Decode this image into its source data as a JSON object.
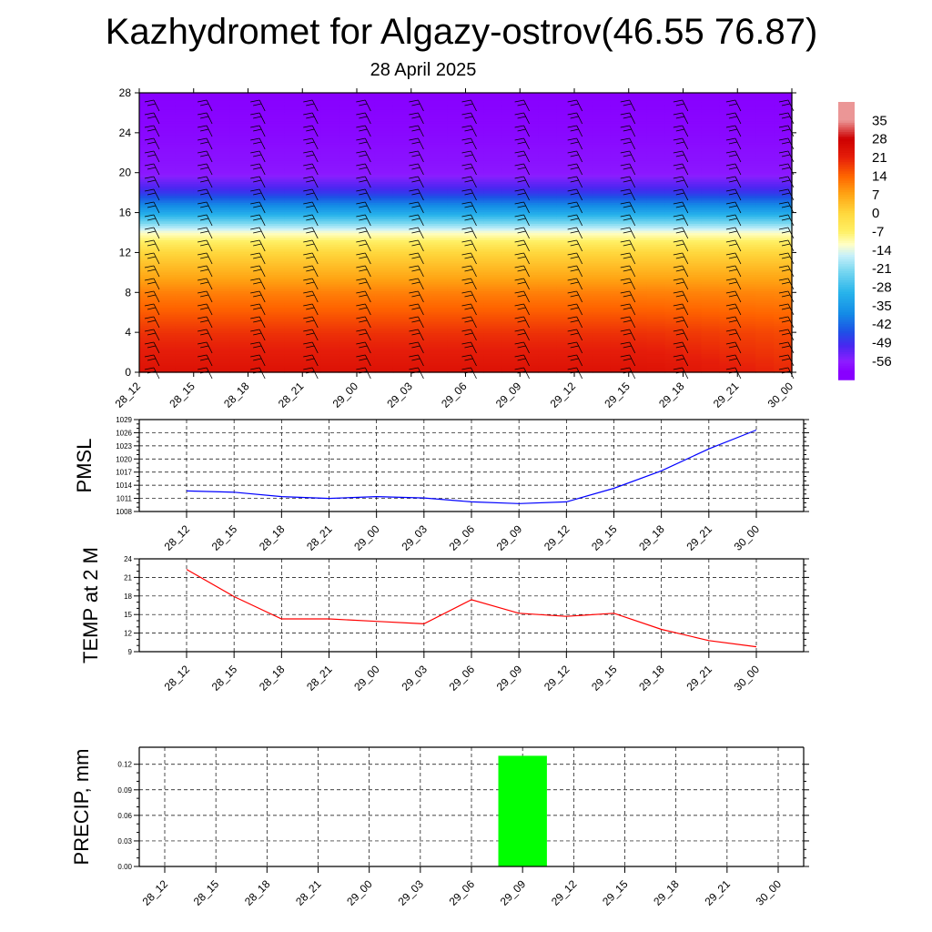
{
  "header": {
    "title": "Kazhydromet for Algazy-ostrov(46.55 76.87)",
    "subtitle": "28 April 2025"
  },
  "colors": {
    "pmsl_line": "#0000ff",
    "temp_line": "#ff0000",
    "precip_bar": "#00ff00",
    "grid": "#000000"
  },
  "colorbar": {
    "labels": [
      "35",
      "28",
      "21",
      "14",
      "7",
      "0",
      "-7",
      "-14",
      "-21",
      "-28",
      "-35",
      "-42",
      "-49",
      "-56"
    ]
  },
  "chart_data": [
    {
      "type": "heatmap",
      "title": "",
      "xlabel": "",
      "ylabel": "",
      "x": [
        "28_12",
        "28_15",
        "28_18",
        "28_21",
        "29_00",
        "29_03",
        "29_06",
        "29_09",
        "29_12",
        "29_15",
        "29_18",
        "29_21",
        "30_00"
      ],
      "yticks": [
        0,
        4,
        8,
        12,
        16,
        20,
        24,
        28
      ],
      "ylim": [
        0,
        28
      ],
      "zlim": [
        -56,
        35
      ],
      "levels": [
        0,
        4,
        8,
        12,
        14,
        16,
        18,
        20,
        24,
        28
      ],
      "profile": [
        24,
        19,
        11,
        0,
        -12,
        -32,
        -48,
        -57,
        -59,
        -60
      ],
      "late_warm_offset": -4,
      "wind_barbs": true
    },
    {
      "type": "line",
      "ylabel": "PMSL",
      "x": [
        "28_12",
        "28_15",
        "28_18",
        "28_21",
        "29_00",
        "29_03",
        "29_06",
        "29_09",
        "29_12",
        "29_15",
        "29_18",
        "29_21",
        "30_00"
      ],
      "series": [
        {
          "values": [
            1012.7,
            1012.4,
            1011.4,
            1011.0,
            1011.4,
            1011.1,
            1010.2,
            1009.8,
            1010.2,
            1013.3,
            1017.3,
            1022.3,
            1026.6
          ]
        }
      ],
      "yticks": [
        1008,
        1011,
        1014,
        1017,
        1020,
        1023,
        1026,
        1029
      ],
      "ylim": [
        1008,
        1029
      ],
      "grid": true
    },
    {
      "type": "line",
      "ylabel": "TEMP at 2 M",
      "x": [
        "28_12",
        "28_15",
        "28_18",
        "28_21",
        "29_00",
        "29_03",
        "29_06",
        "29_09",
        "29_12",
        "29_15",
        "29_18",
        "29_21",
        "30_00"
      ],
      "series": [
        {
          "values": [
            22.3,
            17.9,
            14.3,
            14.3,
            13.9,
            13.5,
            17.4,
            15.2,
            14.7,
            15.2,
            12.6,
            10.8,
            9.8
          ]
        }
      ],
      "yticks": [
        9,
        12,
        15,
        18,
        21,
        24
      ],
      "ylim": [
        9,
        24
      ],
      "grid": true
    },
    {
      "type": "bar",
      "ylabel": "PRECIP, mm",
      "categories": [
        "28_12",
        "28_15",
        "28_18",
        "28_21",
        "29_00",
        "29_03",
        "29_06",
        "29_09",
        "29_12",
        "29_15",
        "29_18",
        "29_21",
        "30_00"
      ],
      "values": [
        0,
        0,
        0,
        0,
        0,
        0,
        0,
        0.13,
        0,
        0,
        0,
        0,
        0
      ],
      "yticks": [
        "0.00",
        "0.03",
        "0.06",
        "0.09",
        "0.12"
      ],
      "ylim": [
        0,
        0.14
      ],
      "grid": true
    }
  ]
}
